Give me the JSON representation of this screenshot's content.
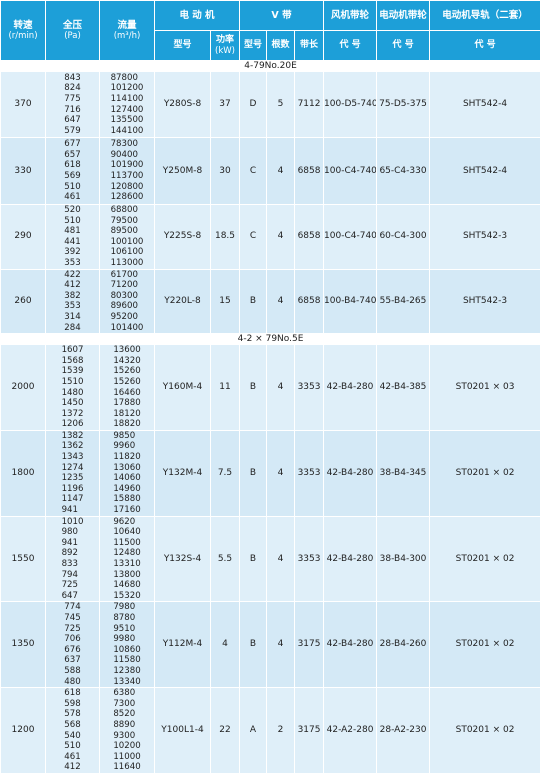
{
  "headers": {
    "speed": "转速",
    "speed_unit": "(r/min)",
    "pressure": "全压",
    "pressure_unit": "(Pa)",
    "flow": "流量",
    "flow_unit": "(m³/h)",
    "motor": "电 动 机",
    "model": "型号",
    "power": "功率",
    "power_unit": "(kW)",
    "vbelt": "V 带",
    "belt_type": "型号",
    "belt_count": "根数",
    "belt_length": "带长",
    "fan_pulley": "风机带轮",
    "motor_pulley": "电动机带轮",
    "rail": "电动机导轨（二套）",
    "code": "代 号"
  },
  "sections": [
    {
      "title": "4-79No.20E",
      "rows": [
        {
          "speed": "370",
          "pressures": [
            "843",
            "824",
            "775",
            "716",
            "647",
            "579"
          ],
          "flows": [
            "87800",
            "101200",
            "114100",
            "127400",
            "135500",
            "144100"
          ],
          "model": "Y280S-8",
          "power": "37",
          "belt_type": "D",
          "belt_count": "5",
          "belt_length": "7112",
          "fan_pulley": "100-D5-740",
          "motor_pulley": "75-D5-375",
          "rail": "SHT542-4"
        },
        {
          "speed": "330",
          "pressures": [
            "677",
            "657",
            "618",
            "569",
            "510",
            "461"
          ],
          "flows": [
            "78300",
            "90400",
            "101900",
            "113700",
            "120800",
            "128600"
          ],
          "model": "Y250M-8",
          "power": "30",
          "belt_type": "C",
          "belt_count": "4",
          "belt_length": "6858",
          "fan_pulley": "100-C4-740",
          "motor_pulley": "65-C4-330",
          "rail": "SHT542-4"
        },
        {
          "speed": "290",
          "pressures": [
            "520",
            "510",
            "481",
            "441",
            "392",
            "353"
          ],
          "flows": [
            "68800",
            "79500",
            "89500",
            "100100",
            "106100",
            "113000"
          ],
          "model": "Y225S-8",
          "power": "18.5",
          "belt_type": "C",
          "belt_count": "4",
          "belt_length": "6858",
          "fan_pulley": "100-C4-740",
          "motor_pulley": "60-C4-300",
          "rail": "SHT542-3"
        },
        {
          "speed": "260",
          "pressures": [
            "422",
            "412",
            "382",
            "353",
            "314",
            "284"
          ],
          "flows": [
            "61700",
            "71200",
            "80300",
            "89600",
            "95200",
            "101400"
          ],
          "model": "Y220L-8",
          "power": "15",
          "belt_type": "B",
          "belt_count": "4",
          "belt_length": "6858",
          "fan_pulley": "100-B4-740",
          "motor_pulley": "55-B4-265",
          "rail": "SHT542-3"
        }
      ]
    },
    {
      "title": "4-2 × 79No.5E",
      "rows": [
        {
          "speed": "2000",
          "pressures": [
            "1607",
            "1568",
            "1539",
            "1510",
            "1480",
            "1450",
            "1372",
            "1206"
          ],
          "flows": [
            "13600",
            "14320",
            "15260",
            "15260",
            "16460",
            "17880",
            "18120",
            "18820"
          ],
          "model": "Y160M-4",
          "power": "11",
          "belt_type": "B",
          "belt_count": "4",
          "belt_length": "3353",
          "fan_pulley": "42-B4-280",
          "motor_pulley": "42-B4-385",
          "rail": "ST0201 × 03"
        },
        {
          "speed": "1800",
          "pressures": [
            "1382",
            "1362",
            "1343",
            "1274",
            "1235",
            "1196",
            "1147",
            "941"
          ],
          "flows": [
            "9850",
            "9960",
            "11820",
            "13060",
            "14060",
            "14960",
            "15880",
            "17160"
          ],
          "model": "Y132M-4",
          "power": "7.5",
          "belt_type": "B",
          "belt_count": "4",
          "belt_length": "3353",
          "fan_pulley": "42-B4-280",
          "motor_pulley": "38-B4-345",
          "rail": "ST0201 × 02"
        },
        {
          "speed": "1550",
          "pressures": [
            "1010",
            "980",
            "941",
            "892",
            "833",
            "794",
            "725",
            "647"
          ],
          "flows": [
            "9620",
            "10640",
            "11500",
            "12480",
            "13310",
            "13800",
            "14680",
            "15320"
          ],
          "model": "Y132S-4",
          "power": "5.5",
          "belt_type": "B",
          "belt_count": "4",
          "belt_length": "3353",
          "fan_pulley": "42-B4-280",
          "motor_pulley": "38-B4-300",
          "rail": "ST0201 × 02"
        },
        {
          "speed": "1350",
          "pressures": [
            "774",
            "745",
            "725",
            "706",
            "676",
            "637",
            "588",
            "480"
          ],
          "flows": [
            "7980",
            "8780",
            "9510",
            "9980",
            "10860",
            "11580",
            "12380",
            "13340"
          ],
          "model": "Y112M-4",
          "power": "4",
          "belt_type": "B",
          "belt_count": "4",
          "belt_length": "3175",
          "fan_pulley": "42-B4-280",
          "motor_pulley": "28-B4-260",
          "rail": "ST0201 × 02"
        },
        {
          "speed": "1200",
          "pressures": [
            "618",
            "598",
            "578",
            "568",
            "540",
            "510",
            "461",
            "412"
          ],
          "flows": [
            "6380",
            "7300",
            "8520",
            "8890",
            "9300",
            "10200",
            "11000",
            "11640"
          ],
          "model": "Y100L1-4",
          "power": "22",
          "belt_type": "A",
          "belt_count": "2",
          "belt_length": "3175",
          "fan_pulley": "42-A2-280",
          "motor_pulley": "28-A2-230",
          "rail": "ST0201 × 02"
        }
      ]
    }
  ]
}
